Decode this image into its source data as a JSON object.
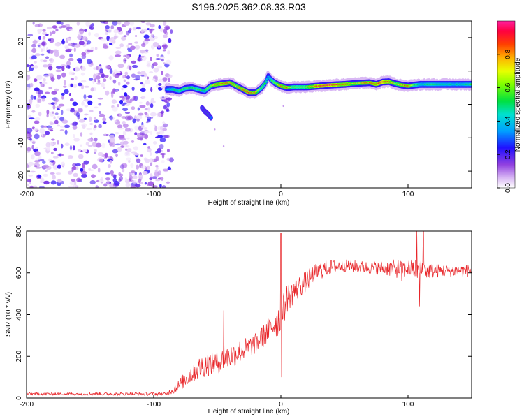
{
  "title": "S196.2025.362.08.33.R03",
  "chart_data": [
    {
      "type": "heatmap",
      "xlabel": "Height of straight line (km)",
      "ylabel": "Frequency (Hz)",
      "xlim": [
        -200,
        150
      ],
      "ylim": [
        -25,
        25
      ],
      "xticks": [
        -200,
        -100,
        0,
        100
      ],
      "yticks": [
        -20,
        -10,
        0,
        10,
        20
      ],
      "colorbar": {
        "label": "Normalized spectral amplitude",
        "range": [
          0,
          1
        ],
        "ticks": [
          "0.0",
          "0.2",
          "0.4",
          "0.6",
          "0.8"
        ]
      },
      "noise_region_x": [
        -200,
        -90
      ],
      "ridge": {
        "x": [
          -90,
          -85,
          -80,
          -75,
          -70,
          -65,
          -60,
          -55,
          -50,
          -45,
          -40,
          -35,
          -30,
          -25,
          -20,
          -15,
          -12,
          -10,
          -8,
          -5,
          0,
          5,
          10,
          20,
          30,
          40,
          50,
          60,
          70,
          75,
          80,
          85,
          90,
          95,
          100,
          105,
          110,
          120,
          130,
          140,
          150
        ],
        "y": [
          4.5,
          4.5,
          4.0,
          4.8,
          5.0,
          4.5,
          4.0,
          5.5,
          6.0,
          6.2,
          6.5,
          5.5,
          4.5,
          3.5,
          3.5,
          5.0,
          6.5,
          8.5,
          7.5,
          6.5,
          5.5,
          5.0,
          5.2,
          5.2,
          5.5,
          5.8,
          6.0,
          6.3,
          6.5,
          6.0,
          6.7,
          6.8,
          6.2,
          5.8,
          5.5,
          5.8,
          6.0,
          6.0,
          6.0,
          6.0,
          6.0
        ],
        "amp": [
          0.4,
          0.5,
          0.55,
          0.6,
          0.55,
          0.6,
          0.5,
          0.7,
          0.8,
          0.9,
          0.8,
          0.75,
          0.85,
          0.9,
          0.8,
          0.6,
          0.5,
          0.35,
          0.5,
          0.65,
          0.8,
          0.85,
          0.65,
          0.7,
          0.95,
          0.95,
          0.9,
          0.75,
          0.85,
          0.9,
          0.95,
          0.9,
          0.7,
          0.8,
          0.85,
          0.6,
          0.5,
          0.55,
          0.5,
          0.5,
          0.55
        ]
      },
      "branch": {
        "x": [
          -62,
          -60,
          -57,
          -55
        ],
        "y": [
          -1.0,
          -2.0,
          -3.0,
          -4.0
        ],
        "amp": [
          0.35,
          0.45,
          0.5,
          0.3
        ]
      }
    },
    {
      "type": "line",
      "xlabel": "Height of straight line (km)",
      "ylabel": "SNR (10 * v/v)",
      "xlim": [
        -200,
        150
      ],
      "ylim": [
        0,
        800
      ],
      "xticks": [
        -200,
        -100,
        0,
        100
      ],
      "yticks": [
        0,
        200,
        400,
        600,
        800
      ],
      "color": "#e8262a",
      "envelope": {
        "x": [
          -200,
          -90,
          -82,
          -70,
          -60,
          -50,
          -40,
          -30,
          -20,
          -10,
          -5,
          0,
          5,
          10,
          20,
          30,
          40,
          50,
          60,
          70,
          80,
          90,
          100,
          110,
          120,
          130,
          140,
          150
        ],
        "mean": [
          20,
          20,
          50,
          120,
          160,
          170,
          200,
          230,
          260,
          320,
          360,
          380,
          480,
          510,
          560,
          610,
          630,
          635,
          630,
          625,
          625,
          620,
          620,
          615,
          610,
          610,
          610,
          610
        ],
        "swing": [
          6,
          8,
          25,
          50,
          60,
          55,
          60,
          55,
          50,
          60,
          75,
          85,
          70,
          60,
          50,
          45,
          35,
          30,
          30,
          30,
          35,
          45,
          45,
          55,
          35,
          30,
          30,
          30
        ]
      },
      "spikes": [
        {
          "x": -45,
          "y": 420
        },
        {
          "x": -10,
          "y": 380
        },
        {
          "x": 0,
          "y": 790
        },
        {
          "x": 0.6,
          "y": 100
        },
        {
          "x": 95,
          "y": 560
        },
        {
          "x": 107,
          "y": 800
        },
        {
          "x": 109,
          "y": 440
        },
        {
          "x": 112,
          "y": 800
        }
      ]
    }
  ]
}
